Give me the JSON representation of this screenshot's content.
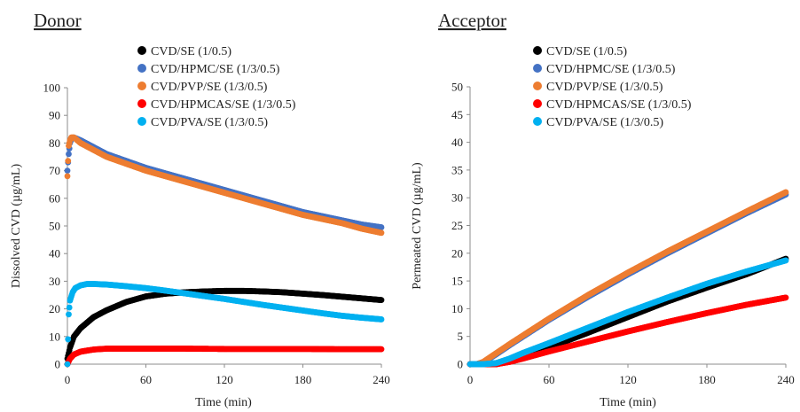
{
  "chart_data": [
    {
      "type": "scatter",
      "title": "Donor",
      "xlabel": "Time (min)",
      "ylabel": "Dissolved CVD (µg/mL)",
      "xlim": [
        0,
        240
      ],
      "ylim": [
        0,
        100
      ],
      "xticks": [
        0,
        60,
        120,
        180,
        240
      ],
      "yticks": [
        0,
        10,
        20,
        30,
        40,
        50,
        60,
        70,
        80,
        90,
        100
      ],
      "grid": false,
      "legend": "top-center",
      "series": [
        {
          "name": "CVD/SE (1/0.5)",
          "color": "#000000",
          "x": [
            0,
            2,
            5,
            10,
            20,
            30,
            45,
            60,
            75,
            90,
            105,
            120,
            135,
            150,
            165,
            180,
            195,
            210,
            225,
            240
          ],
          "y": [
            2,
            6,
            10,
            13,
            17,
            19.5,
            22.5,
            24.5,
            25.5,
            26,
            26.3,
            26.5,
            26.5,
            26.3,
            26,
            25.5,
            25,
            24.4,
            23.8,
            23.2
          ]
        },
        {
          "name": "CVD/HPMC/SE (1/3/0.5)",
          "color": "#4472c4",
          "x": [
            0,
            1,
            2,
            3,
            5,
            10,
            20,
            30,
            45,
            60,
            75,
            90,
            105,
            120,
            135,
            150,
            165,
            180,
            195,
            210,
            225,
            240
          ],
          "y": [
            70,
            76,
            80,
            81.5,
            82,
            81,
            78.5,
            76,
            73.5,
            71,
            69,
            67,
            65,
            63,
            61,
            59,
            57,
            55,
            53.5,
            52,
            50.5,
            49.5
          ]
        },
        {
          "name": "CVD/PVP/SE (1/3/0.5)",
          "color": "#ed7d31",
          "x": [
            0,
            1,
            2,
            3,
            5,
            10,
            20,
            30,
            45,
            60,
            75,
            90,
            105,
            120,
            135,
            150,
            165,
            180,
            195,
            210,
            225,
            240
          ],
          "y": [
            68,
            79,
            81,
            82,
            82,
            80,
            77.5,
            75,
            72.5,
            70,
            68,
            66,
            64,
            62,
            60,
            58,
            56,
            54,
            52.5,
            51,
            49,
            47.5
          ]
        },
        {
          "name": "CVD/HPMCAS/SE (1/3/0.5)",
          "color": "#ff0000",
          "x": [
            0,
            2,
            5,
            10,
            20,
            30,
            60,
            90,
            120,
            150,
            180,
            210,
            240
          ],
          "y": [
            0,
            2,
            3.5,
            4.5,
            5.3,
            5.6,
            5.6,
            5.6,
            5.5,
            5.5,
            5.5,
            5.4,
            5.4
          ]
        },
        {
          "name": "CVD/PVA/SE (1/3/0.5)",
          "color": "#00b0f0",
          "x": [
            0,
            1,
            2,
            4,
            6,
            10,
            15,
            20,
            30,
            45,
            60,
            75,
            90,
            105,
            120,
            135,
            150,
            165,
            180,
            195,
            210,
            225,
            240
          ],
          "y": [
            0,
            18,
            23,
            26,
            27.5,
            28.5,
            29,
            29,
            28.8,
            28.2,
            27.5,
            26.6,
            25.6,
            24.6,
            23.6,
            22.5,
            21.4,
            20.4,
            19.4,
            18.4,
            17.5,
            16.8,
            16.2
          ]
        }
      ]
    },
    {
      "type": "scatter",
      "title": "Acceptor",
      "xlabel": "Time (min)",
      "ylabel": "Permeated CVD (µg/mL)",
      "xlim": [
        0,
        240
      ],
      "ylim": [
        0,
        50
      ],
      "xticks": [
        0,
        60,
        120,
        180,
        240
      ],
      "yticks": [
        0,
        5,
        10,
        15,
        20,
        25,
        30,
        35,
        40,
        45,
        50
      ],
      "grid": false,
      "legend": "top-center",
      "series": [
        {
          "name": "CVD/SE (1/0.5)",
          "color": "#000000",
          "x": [
            0,
            10,
            20,
            30,
            40,
            60,
            90,
            120,
            150,
            180,
            210,
            240
          ],
          "y": [
            0,
            0,
            0,
            0.6,
            1.4,
            3,
            5.7,
            8.5,
            11.3,
            13.8,
            16.2,
            19
          ]
        },
        {
          "name": "CVD/HPMC/SE (1/3/0.5)",
          "color": "#4472c4",
          "x": [
            0,
            5,
            10,
            20,
            30,
            60,
            90,
            120,
            150,
            180,
            210,
            240
          ],
          "y": [
            0,
            0,
            0.3,
            1.8,
            3.4,
            8,
            12.2,
            16.2,
            20,
            23.6,
            27.2,
            30.6
          ]
        },
        {
          "name": "CVD/PVP/SE (1/3/0.5)",
          "color": "#ed7d31",
          "x": [
            0,
            5,
            10,
            20,
            30,
            60,
            90,
            120,
            150,
            180,
            210,
            240
          ],
          "y": [
            0,
            0,
            0.4,
            2,
            3.6,
            8.2,
            12.5,
            16.5,
            20.3,
            23.9,
            27.5,
            31
          ]
        },
        {
          "name": "CVD/HPMCAS/SE (1/3/0.5)",
          "color": "#ff0000",
          "x": [
            0,
            10,
            20,
            30,
            40,
            60,
            90,
            120,
            150,
            180,
            210,
            240
          ],
          "y": [
            0,
            0,
            0,
            0.4,
            1,
            2.3,
            4.1,
            5.9,
            7.6,
            9.2,
            10.7,
            12
          ]
        },
        {
          "name": "CVD/PVA/SE (1/3/0.5)",
          "color": "#00b0f0",
          "x": [
            0,
            10,
            20,
            30,
            40,
            60,
            90,
            120,
            150,
            180,
            210,
            240
          ],
          "y": [
            0,
            0,
            0.2,
            1,
            2,
            3.8,
            6.6,
            9.4,
            12,
            14.5,
            16.7,
            18.7
          ]
        }
      ]
    }
  ]
}
